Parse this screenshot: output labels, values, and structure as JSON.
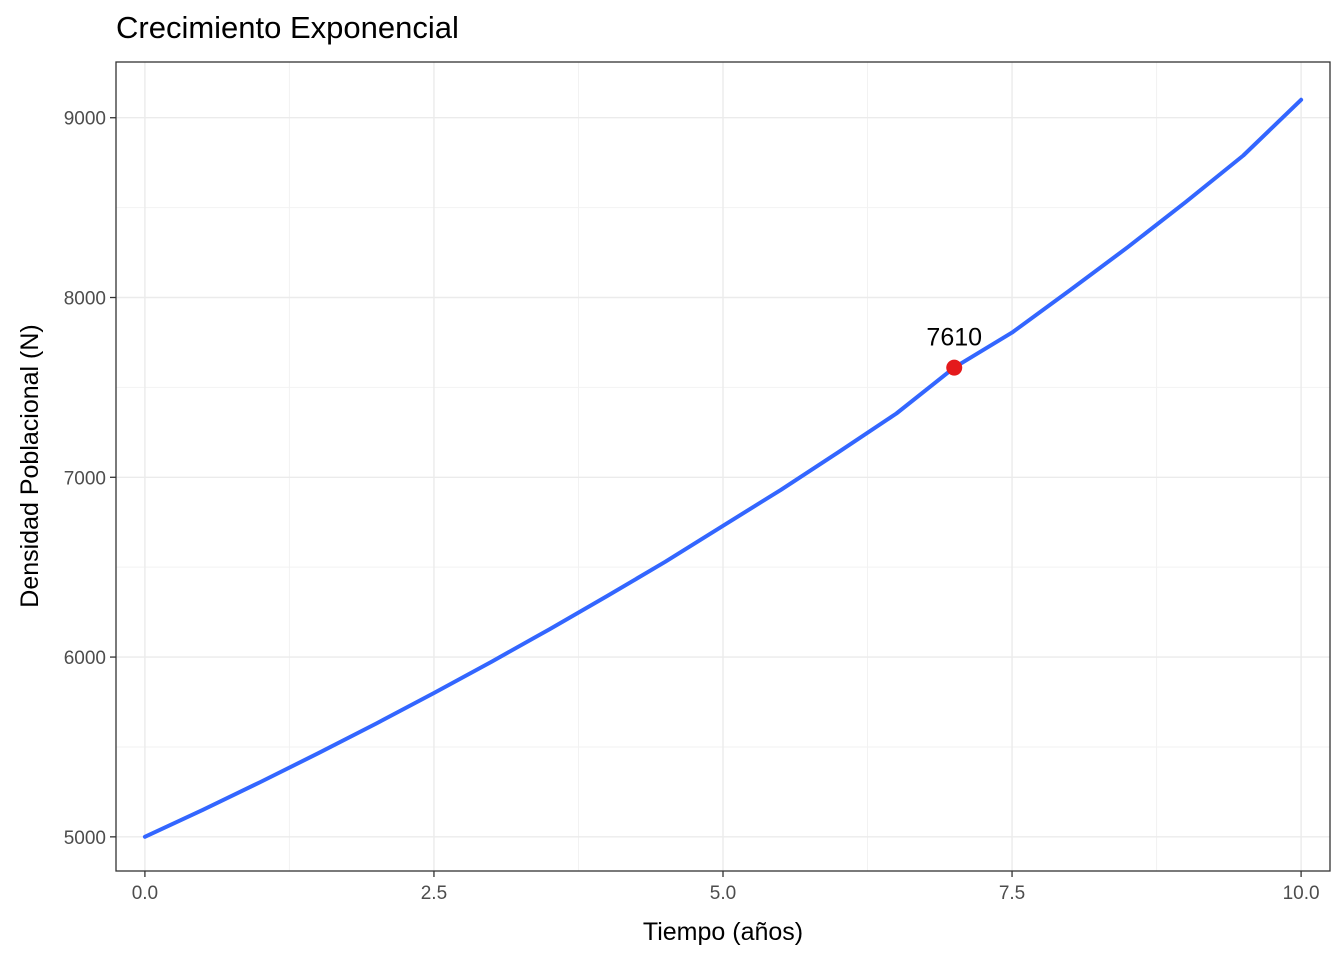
{
  "chart_data": {
    "type": "line",
    "title": "Crecimiento Exponencial",
    "xlabel": "Tiempo (años)",
    "ylabel": "Densidad Poblacional (N)",
    "xlim": [
      -0.25,
      10.25
    ],
    "ylim": [
      4810,
      9310
    ],
    "x_ticks": [
      0.0,
      2.5,
      5.0,
      7.5,
      10.0
    ],
    "x_tick_labels": [
      "0.0",
      "2.5",
      "5.0",
      "7.5",
      "10.0"
    ],
    "x_minor": [
      1.25,
      3.75,
      6.25,
      8.75
    ],
    "y_ticks": [
      5000,
      6000,
      7000,
      8000,
      9000
    ],
    "y_tick_labels": [
      "5000",
      "6000",
      "7000",
      "8000",
      "9000"
    ],
    "y_minor": [
      5500,
      6500,
      7500,
      8500
    ],
    "grid": true,
    "series": [
      {
        "color": "#3366ff",
        "x": [
          0,
          0.5,
          1,
          1.5,
          2,
          2.5,
          3,
          3.5,
          4,
          4.5,
          5,
          5.5,
          6,
          6.5,
          7,
          7.5,
          8,
          8.5,
          9,
          9.5,
          10
        ],
        "y": [
          5000,
          5150,
          5305,
          5465,
          5630,
          5800,
          5975,
          6155,
          6340,
          6530,
          6730,
          6930,
          7140,
          7355,
          7610,
          7805,
          8040,
          8280,
          8530,
          8790,
          9100
        ]
      }
    ],
    "highlight": {
      "x": 7,
      "y": 7610,
      "label": "7610",
      "color": "#e41a1c"
    }
  }
}
